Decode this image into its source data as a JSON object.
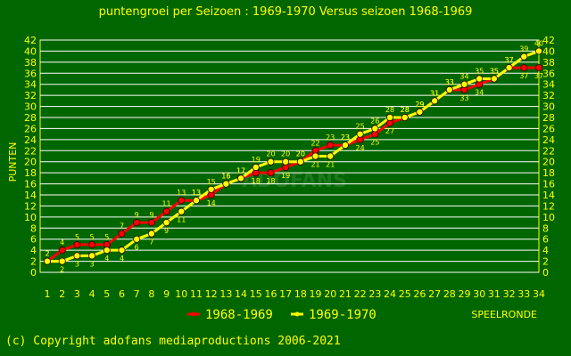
{
  "chart_data": {
    "type": "line",
    "title": "puntengroei per Seizoen : 1969-1970 Versus seizoen 1968-1969",
    "xlabel": "SPEELRONDE",
    "ylabel": "PUNTEN",
    "watermark": "ADOFANS",
    "xlim": [
      1,
      34
    ],
    "ylim": [
      0,
      42
    ],
    "x": [
      1,
      2,
      3,
      4,
      5,
      6,
      7,
      8,
      9,
      10,
      11,
      12,
      13,
      14,
      15,
      16,
      17,
      18,
      19,
      20,
      21,
      22,
      23,
      24,
      25,
      26,
      27,
      28,
      29,
      30,
      31,
      32,
      33,
      34
    ],
    "y_ticks": [
      0,
      2,
      4,
      6,
      8,
      10,
      12,
      14,
      16,
      18,
      20,
      22,
      24,
      26,
      28,
      30,
      32,
      34,
      36,
      38,
      40,
      42
    ],
    "grid": true,
    "legend_position": "bottom-center",
    "series": [
      {
        "name": "1968-1969",
        "color": "#ff0000",
        "values": [
          2,
          4,
          5,
          5,
          5,
          7,
          9,
          9,
          11,
          13,
          13,
          14,
          16,
          17,
          18,
          18,
          19,
          20,
          22,
          23,
          23,
          24,
          25,
          27,
          28,
          29,
          31,
          33,
          33,
          34,
          35,
          37,
          37,
          37
        ]
      },
      {
        "name": "1969-1970",
        "color": "#ffff00",
        "values": [
          2,
          2,
          3,
          3,
          4,
          4,
          6,
          7,
          9,
          11,
          13,
          15,
          16,
          17,
          19,
          20,
          20,
          20,
          21,
          21,
          23,
          25,
          26,
          28,
          28,
          29,
          31,
          33,
          34,
          35,
          35,
          37,
          39,
          40
        ]
      }
    ]
  },
  "footer": {
    "copyright": "(c) Copyright adofans mediaproductions 2006-2021"
  }
}
